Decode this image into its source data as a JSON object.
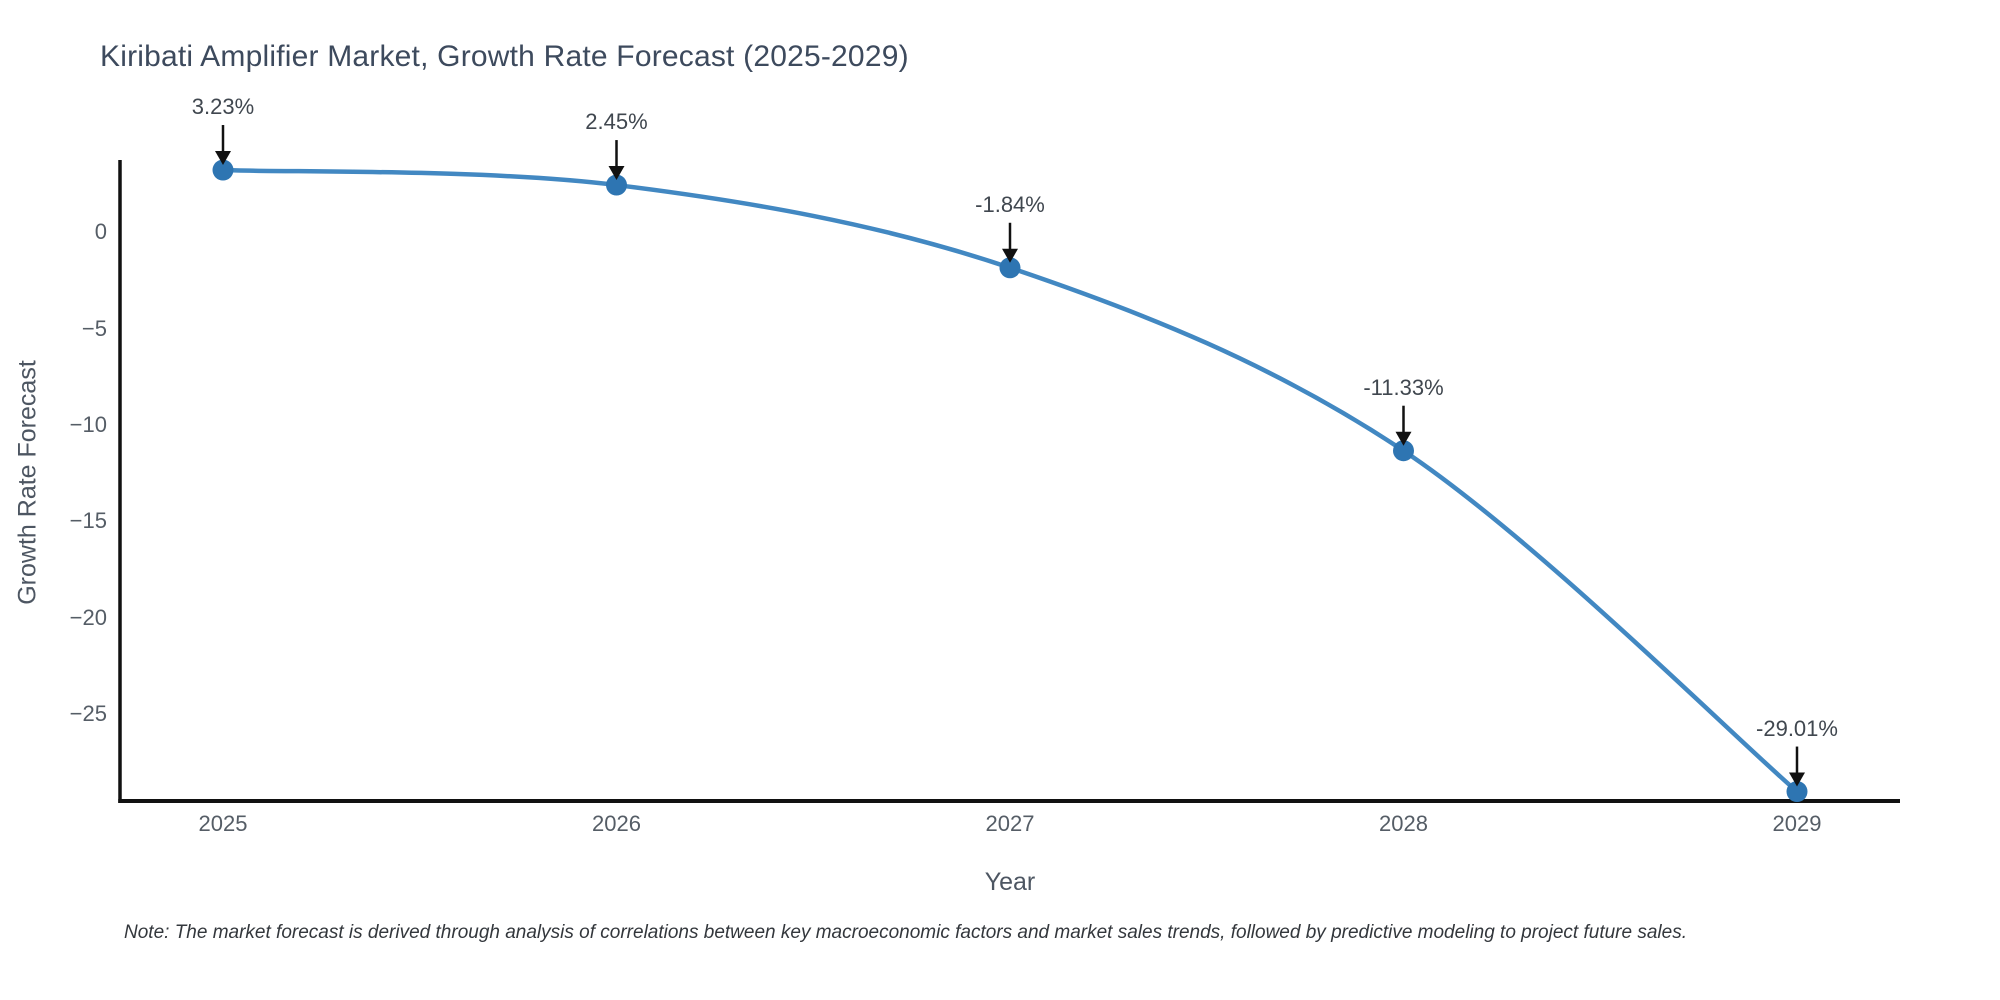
{
  "title": "Kiribati Amplifier Market, Growth Rate Forecast (2025-2029)",
  "note": "Note: The market forecast is derived through analysis of correlations between key macroeconomic factors and market sales trends, followed by predictive modeling to project future sales.",
  "chart_data": {
    "type": "line",
    "title": "Kiribati Amplifier Market, Growth Rate Forecast (2025-2029)",
    "xlabel": "Year",
    "ylabel": "Growth Rate Forecast",
    "x": [
      2025,
      2026,
      2027,
      2028,
      2029
    ],
    "values": [
      3.23,
      2.45,
      -1.84,
      -11.33,
      -29.01
    ],
    "annotations": [
      "3.23%",
      "2.45%",
      "-1.84%",
      "-11.33%",
      "-29.01%"
    ],
    "x_tick_labels": [
      "2025",
      "2026",
      "2027",
      "2028",
      "2029"
    ],
    "y_ticks": [
      0,
      -5,
      -10,
      -15,
      -20,
      -25
    ],
    "y_tick_labels": [
      "0",
      "−5",
      "−10",
      "−15",
      "−20",
      "−25"
    ],
    "ylim": [
      -29.5,
      3.75
    ],
    "grid": false,
    "legend": false,
    "smooth_line": true,
    "colors": {
      "line": "#4288c2",
      "marker": "#2e75b2",
      "axis": "#111111",
      "arrow": "#111111"
    }
  }
}
